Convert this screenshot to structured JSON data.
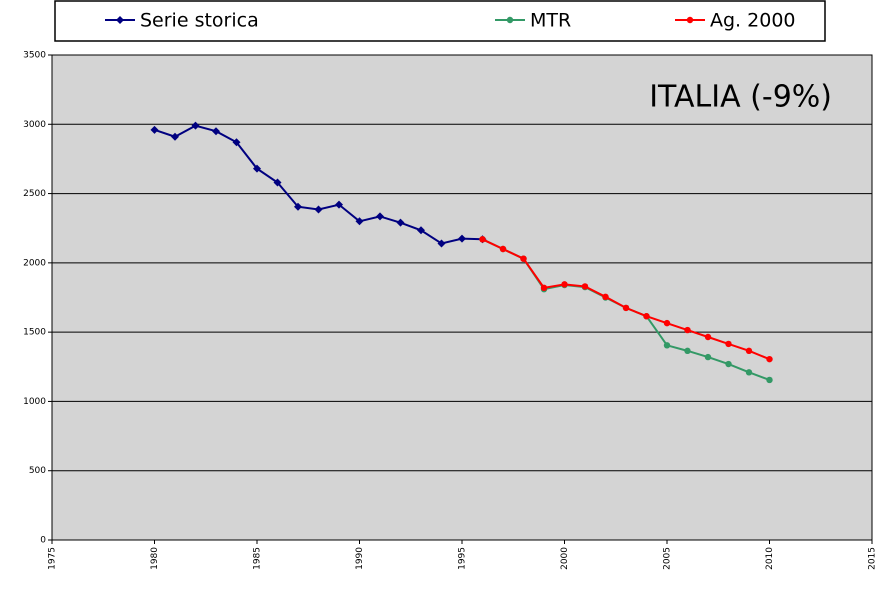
{
  "chart_data": {
    "type": "line",
    "annotation": "ITALIA (-9%)",
    "xlim": [
      1975,
      2015
    ],
    "xticks": [
      1975,
      1980,
      1985,
      1990,
      1995,
      2000,
      2005,
      2010,
      2015
    ],
    "ylim": [
      0,
      3500
    ],
    "yticks": [
      0,
      500,
      1000,
      1500,
      2000,
      2500,
      3000,
      3500
    ],
    "grid": true,
    "series": [
      {
        "name": "Serie storica",
        "color": "#000080",
        "marker": "diamond",
        "x": [
          1980,
          1981,
          1982,
          1983,
          1984,
          1985,
          1986,
          1987,
          1988,
          1989,
          1990,
          1991,
          1992,
          1993,
          1994,
          1995,
          1996
        ],
        "values": [
          2960,
          2910,
          2990,
          2950,
          2870,
          2680,
          2580,
          2405,
          2385,
          2420,
          2300,
          2335,
          2290,
          2235,
          2140,
          2175,
          2170
        ]
      },
      {
        "name": "MTR",
        "color": "#339966",
        "marker": "circle",
        "x": [
          1996,
          1997,
          1998,
          1999,
          2000,
          2001,
          2002,
          2003,
          2004,
          2005,
          2006,
          2007,
          2008,
          2009,
          2010
        ],
        "values": [
          2170,
          2100,
          2030,
          1810,
          1840,
          1825,
          1750,
          1675,
          1615,
          1405,
          1365,
          1320,
          1270,
          1210,
          1155
        ]
      },
      {
        "name": "Ag. 2000",
        "color": "#ff0000",
        "marker": "circle",
        "x": [
          1996,
          1997,
          1998,
          1999,
          2000,
          2001,
          2002,
          2003,
          2004,
          2005,
          2006,
          2007,
          2008,
          2009,
          2010
        ],
        "values": [
          2170,
          2100,
          2030,
          1820,
          1845,
          1830,
          1755,
          1675,
          1615,
          1565,
          1515,
          1465,
          1415,
          1365,
          1305
        ]
      }
    ]
  }
}
